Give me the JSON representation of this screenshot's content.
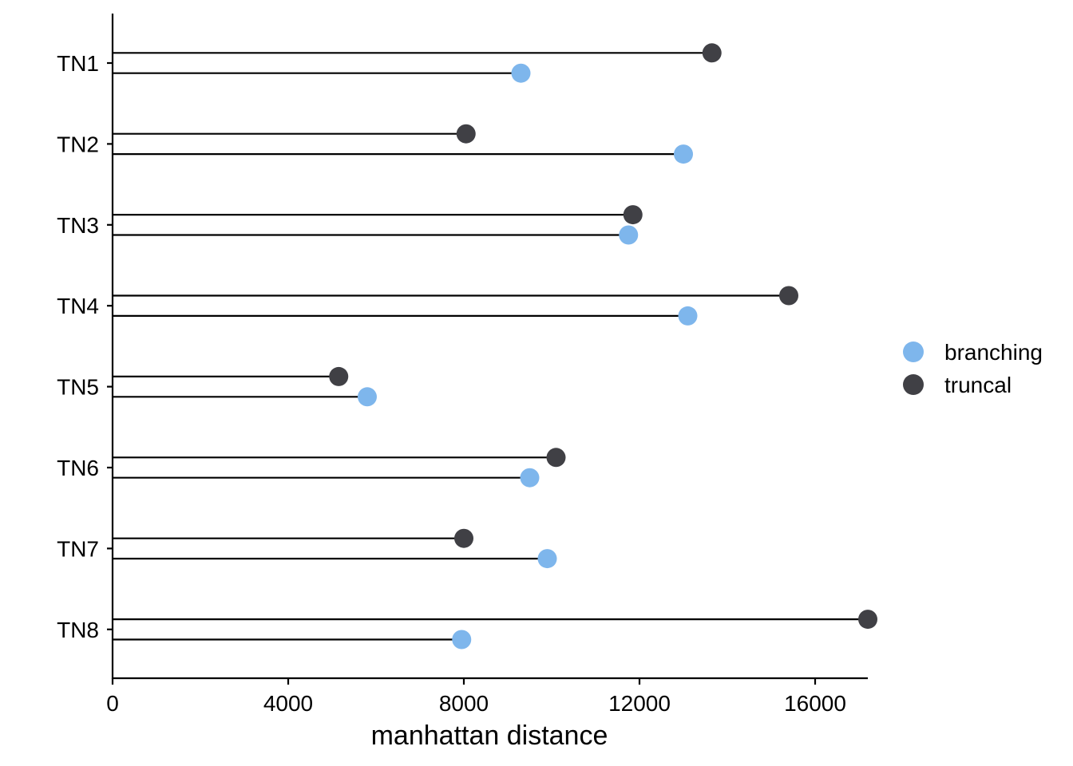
{
  "chart_data": {
    "type": "lollipop",
    "orientation": "horizontal",
    "categories": [
      "TN1",
      "TN2",
      "TN3",
      "TN4",
      "TN5",
      "TN6",
      "TN7",
      "TN8"
    ],
    "series": [
      {
        "name": "truncal",
        "color": "#404045",
        "values": [
          13650,
          8050,
          11850,
          15400,
          5150,
          10100,
          8000,
          17200
        ]
      },
      {
        "name": "branching",
        "color": "#7EB6EC",
        "values": [
          9300,
          13000,
          11750,
          13100,
          5800,
          9500,
          9900,
          7950
        ]
      }
    ],
    "legend_order": [
      "branching",
      "truncal"
    ],
    "xlabel": "manhattan distance",
    "ylabel": "",
    "xlim": [
      0,
      17200
    ],
    "xticks": [
      0,
      4000,
      8000,
      12000,
      16000
    ],
    "grid": false,
    "legend_position": "right"
  }
}
